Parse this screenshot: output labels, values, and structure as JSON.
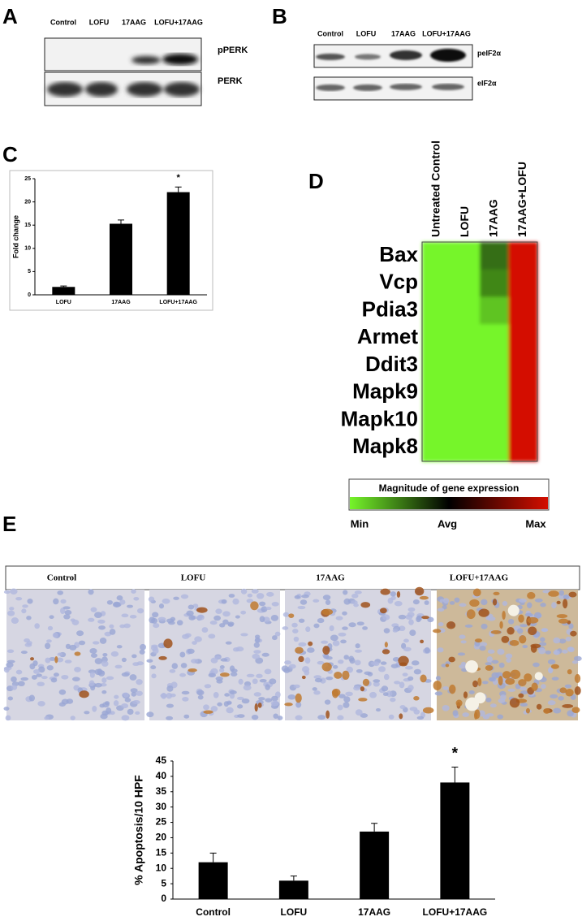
{
  "panel_labels": [
    "A",
    "B",
    "C",
    "D",
    "E"
  ],
  "blot_a": {
    "lanes": [
      "Control",
      "LOFU",
      "17AAG",
      "LOFU+17AAG"
    ],
    "bands": [
      "pPERK",
      "PERK"
    ]
  },
  "blot_b": {
    "lanes": [
      "Control",
      "LOFU",
      "17AAG",
      "LOFU+17AAG"
    ],
    "bands": [
      "peIF2α",
      "eIF2α"
    ]
  },
  "micrographs": {
    "labels": [
      "Control",
      "LOFU",
      "17AAG",
      "LOFU+17AAG"
    ]
  },
  "chart_data": [
    {
      "type": "bar",
      "y_label": "Fold change",
      "categories": [
        "LOFU",
        "17AAG",
        "LOFU+17AAG"
      ],
      "values": [
        1.7,
        15.3,
        22.1
      ],
      "errors": [
        0.2,
        0.8,
        1.1
      ],
      "color": "#000000",
      "ylim": [
        0,
        25
      ],
      "yticks": [
        0,
        5,
        10,
        15,
        20,
        25
      ],
      "annotations": [
        null,
        null,
        "*"
      ]
    },
    {
      "type": "heatmap",
      "columns": [
        "Untreated Control",
        "LOFU",
        "17AAG",
        "17AAG+LOFU"
      ],
      "rows": [
        "Bax",
        "Vcp",
        "Pdia3",
        "Armet",
        "Ddit3",
        "Mapk9",
        "Mapk10",
        "Mapk8"
      ],
      "values": [
        [
          -1,
          -1,
          -0.45,
          1
        ],
        [
          -1,
          -1,
          -0.55,
          1
        ],
        [
          -1,
          -1,
          -0.8,
          1
        ],
        [
          -1,
          -1,
          -1,
          1
        ],
        [
          -1,
          -1,
          -1,
          1
        ],
        [
          -1,
          -1,
          -1,
          1
        ],
        [
          -1,
          -1,
          -1,
          1
        ],
        [
          -1,
          -1,
          -1,
          1
        ]
      ],
      "zlim": [
        -1,
        1
      ],
      "colors": [
        "#76f52a",
        "#000000",
        "#d40f00"
      ],
      "legend_title": "Magnitude of gene expression",
      "legend_labels": [
        "Min",
        "Avg",
        "Max"
      ]
    },
    {
      "type": "bar",
      "y_label": "% Apoptosis/10 HPF",
      "categories": [
        "Control",
        "LOFU",
        "17AAG",
        "LOFU+17AAG"
      ],
      "values": [
        12,
        6,
        22,
        38
      ],
      "errors": [
        3,
        1.5,
        2.7,
        5
      ],
      "color": "#000000",
      "ylim": [
        0,
        45
      ],
      "yticks": [
        0,
        5,
        10,
        15,
        20,
        25,
        30,
        35,
        40,
        45
      ],
      "annotations": [
        null,
        null,
        null,
        "*"
      ]
    }
  ]
}
